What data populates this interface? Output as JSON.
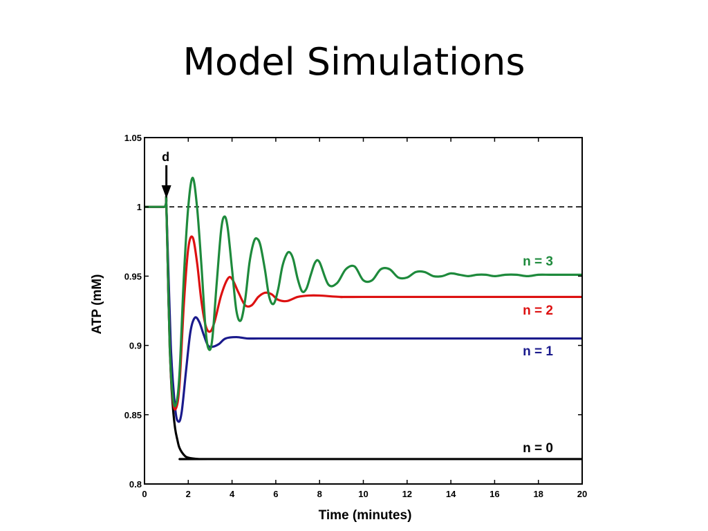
{
  "slide": {
    "title": "Model Simulations"
  },
  "chart_data": {
    "type": "line",
    "title": "",
    "xlabel": "Time  (minutes)",
    "ylabel": "ATP  (mM)",
    "xlim": [
      0,
      20
    ],
    "ylim": [
      0.8,
      1.05
    ],
    "xticks": [
      0,
      2,
      4,
      6,
      8,
      10,
      12,
      14,
      16,
      18,
      20
    ],
    "yticks": [
      {
        "value": 0.8,
        "label": "0.8"
      },
      {
        "value": 0.85,
        "label": "0.85"
      },
      {
        "value": 0.9,
        "label": "0.9"
      },
      {
        "value": 0.95,
        "label": "0.95"
      },
      {
        "value": 1.0,
        "label": "1"
      },
      {
        "value": 1.05,
        "label": "1.05"
      }
    ],
    "grid": false,
    "reference_line": {
      "y": 1.0,
      "style": "dashed",
      "color": "#000000"
    },
    "annotation": {
      "text": "d",
      "x": 1.0,
      "style": "arrow-down"
    },
    "series": [
      {
        "name": "n  =  0",
        "color": "#000000",
        "x": [
          0,
          0.9,
          1.0,
          1.1,
          1.2,
          1.3,
          1.4,
          1.5,
          1.6,
          1.8,
          2.0,
          2.5,
          3,
          20
        ],
        "y": [
          1.0,
          1.0,
          1.0,
          0.93,
          0.88,
          0.855,
          0.84,
          0.832,
          0.826,
          0.821,
          0.819,
          0.818,
          0.818,
          0.818
        ]
      },
      {
        "name": "n  =  1",
        "color": "#1a1a8c",
        "x": [
          0,
          0.9,
          1.0,
          1.2,
          1.4,
          1.55,
          1.7,
          1.9,
          2.1,
          2.3,
          2.5,
          2.7,
          2.9,
          3.1,
          3.4,
          3.7,
          4.2,
          4.7,
          5.2,
          6,
          20
        ],
        "y": [
          1.0,
          1.0,
          1.0,
          0.9,
          0.855,
          0.845,
          0.852,
          0.882,
          0.91,
          0.92,
          0.917,
          0.908,
          0.9,
          0.899,
          0.901,
          0.905,
          0.906,
          0.905,
          0.905,
          0.905,
          0.905
        ]
      },
      {
        "name": "n  =  2",
        "color": "#dd1111",
        "x": [
          0,
          0.9,
          1.0,
          1.15,
          1.3,
          1.45,
          1.6,
          1.8,
          2.0,
          2.2,
          2.4,
          2.6,
          2.8,
          3.0,
          3.2,
          3.5,
          3.8,
          4.0,
          4.3,
          4.6,
          4.9,
          5.2,
          5.5,
          5.8,
          6.1,
          6.5,
          7.0,
          7.5,
          8.0,
          9.0,
          10,
          20
        ],
        "y": [
          1.0,
          1.0,
          1.0,
          0.9,
          0.86,
          0.855,
          0.872,
          0.93,
          0.97,
          0.978,
          0.96,
          0.932,
          0.914,
          0.91,
          0.917,
          0.936,
          0.948,
          0.948,
          0.938,
          0.929,
          0.929,
          0.935,
          0.938,
          0.937,
          0.933,
          0.932,
          0.935,
          0.936,
          0.936,
          0.935,
          0.935,
          0.935
        ]
      },
      {
        "name": "n  =  3",
        "color": "#1e8a3c",
        "x": [
          0,
          0.9,
          1.0,
          1.15,
          1.3,
          1.45,
          1.6,
          1.8,
          2.0,
          2.2,
          2.4,
          2.6,
          2.8,
          2.95,
          3.1,
          3.3,
          3.5,
          3.65,
          3.8,
          4.0,
          4.2,
          4.4,
          4.6,
          4.8,
          5.0,
          5.15,
          5.3,
          5.5,
          5.7,
          5.9,
          6.1,
          6.3,
          6.5,
          6.65,
          6.8,
          7.0,
          7.2,
          7.4,
          7.6,
          7.8,
          8.0,
          8.4,
          8.8,
          9.2,
          9.6,
          10.0,
          10.4,
          10.8,
          11.2,
          11.6,
          12.0,
          12.4,
          12.8,
          13.2,
          13.6,
          14.0,
          14.4,
          14.8,
          15.2,
          15.6,
          16.0,
          16.5,
          17.0,
          17.5,
          18.0,
          18.5,
          19.0,
          19.5,
          20
        ],
        "y": [
          1.0,
          1.0,
          1.0,
          0.9,
          0.862,
          0.858,
          0.88,
          0.95,
          1.0,
          1.021,
          1.0,
          0.958,
          0.91,
          0.897,
          0.905,
          0.945,
          0.983,
          0.993,
          0.985,
          0.955,
          0.925,
          0.918,
          0.933,
          0.96,
          0.975,
          0.977,
          0.972,
          0.955,
          0.935,
          0.93,
          0.94,
          0.957,
          0.966,
          0.967,
          0.962,
          0.948,
          0.939,
          0.941,
          0.951,
          0.96,
          0.96,
          0.944,
          0.945,
          0.955,
          0.957,
          0.947,
          0.947,
          0.955,
          0.955,
          0.949,
          0.949,
          0.953,
          0.953,
          0.95,
          0.95,
          0.952,
          0.951,
          0.95,
          0.951,
          0.951,
          0.95,
          0.951,
          0.951,
          0.95,
          0.951,
          0.951,
          0.951,
          0.951,
          0.951
        ]
      }
    ]
  }
}
